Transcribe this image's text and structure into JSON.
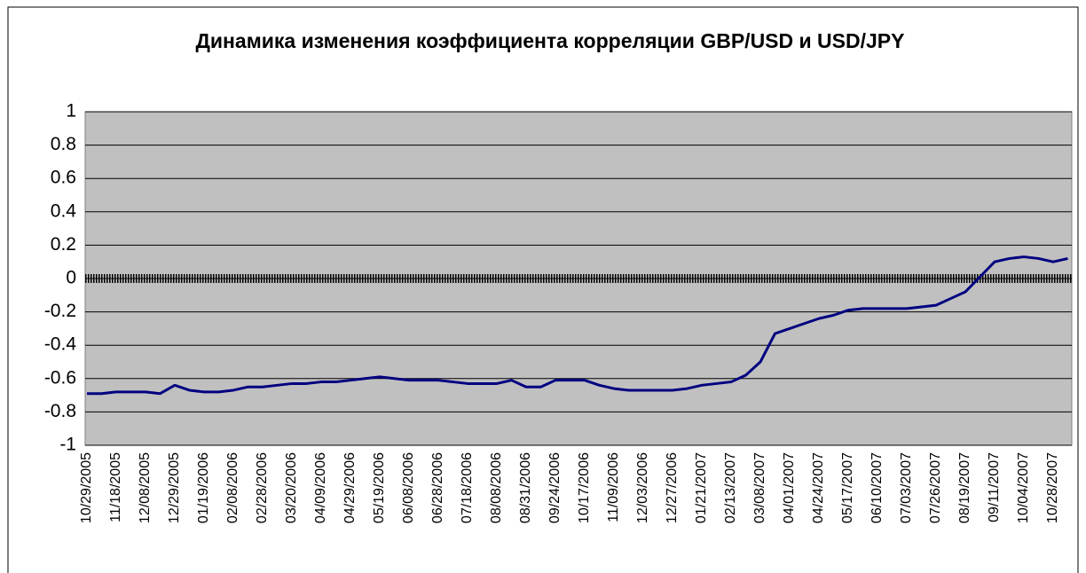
{
  "chart_data": {
    "type": "line",
    "title": "Динамика изменения коэффициента корреляции GBP/USD и USD/JPY",
    "categories": [
      "10/29/2005",
      null,
      "11/18/2005",
      null,
      "12/08/2005",
      null,
      "12/29/2005",
      null,
      "01/19/2006",
      null,
      "02/08/2006",
      null,
      "02/28/2006",
      null,
      "03/20/2006",
      null,
      "04/09/2006",
      null,
      "04/29/2006",
      null,
      "05/19/2006",
      null,
      "06/08/2006",
      null,
      "06/28/2006",
      null,
      "07/18/2006",
      null,
      "08/08/2006",
      null,
      "08/31/2006",
      null,
      "09/24/2006",
      null,
      "10/17/2006",
      null,
      "11/09/2006",
      null,
      "12/03/2006",
      null,
      "12/27/2006",
      null,
      "01/21/2007",
      null,
      "02/13/2007",
      null,
      "03/08/2007",
      null,
      "04/01/2007",
      null,
      "04/24/2007",
      null,
      "05/17/2007",
      null,
      "06/10/2007",
      null,
      "07/03/2007",
      null,
      "07/26/2007",
      null,
      "08/19/2007",
      null,
      "09/11/2007",
      null,
      "10/04/2007",
      null,
      "10/28/2007",
      null
    ],
    "values": [
      -0.69,
      -0.69,
      -0.68,
      -0.68,
      -0.68,
      -0.69,
      -0.64,
      -0.67,
      -0.68,
      -0.68,
      -0.67,
      -0.65,
      -0.65,
      -0.64,
      -0.63,
      -0.63,
      -0.62,
      -0.62,
      -0.61,
      -0.6,
      -0.59,
      -0.6,
      -0.61,
      -0.61,
      -0.61,
      -0.62,
      -0.63,
      -0.63,
      -0.63,
      -0.61,
      -0.65,
      -0.65,
      -0.61,
      -0.61,
      -0.61,
      -0.64,
      -0.66,
      -0.67,
      -0.67,
      -0.67,
      -0.67,
      -0.66,
      -0.64,
      -0.63,
      -0.62,
      -0.58,
      -0.5,
      -0.33,
      -0.3,
      -0.27,
      -0.24,
      -0.22,
      -0.19,
      -0.18,
      -0.18,
      -0.18,
      -0.18,
      -0.17,
      -0.16,
      -0.12,
      -0.08,
      0.01,
      0.1,
      0.12,
      0.13,
      0.12,
      0.1,
      0.12
    ],
    "color": "#000080",
    "ylim": [
      -1,
      1
    ],
    "yticks": [
      -1,
      -0.8,
      -0.6,
      -0.4,
      -0.2,
      0,
      0.2,
      0.4,
      0.6,
      0.8,
      1
    ],
    "grid": true
  }
}
